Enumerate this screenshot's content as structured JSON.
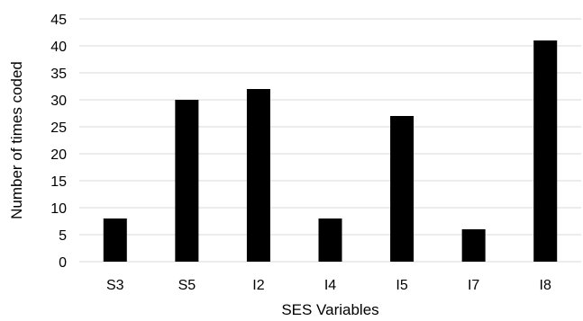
{
  "chart_data": {
    "type": "bar",
    "title": "",
    "xlabel": "SES Variables",
    "ylabel": "Number of times coded",
    "categories": [
      "S3",
      "S5",
      "I2",
      "I4",
      "I5",
      "I7",
      "I8"
    ],
    "values": [
      8,
      30,
      32,
      8,
      27,
      6,
      41
    ],
    "ylim": [
      0,
      45
    ],
    "ytick_step": 5,
    "grid": true,
    "legend": "none",
    "bar_color": "#000000",
    "grid_color": "#d9d9d9"
  }
}
